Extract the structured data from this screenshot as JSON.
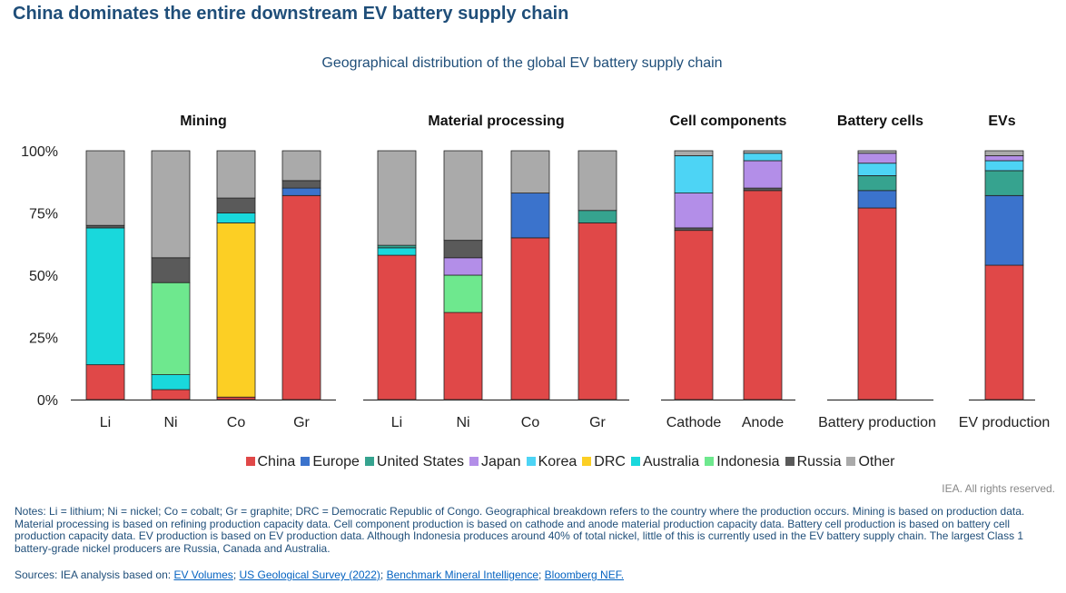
{
  "title": "China dominates the entire downstream EV battery supply chain",
  "subtitle": "Geographical distribution of the global EV battery supply chain",
  "legend": [
    {
      "name": "China",
      "color": "#e04848"
    },
    {
      "name": "Europe",
      "color": "#3b73cc"
    },
    {
      "name": "United States",
      "color": "#36a38f"
    },
    {
      "name": "Japan",
      "color": "#b38ee8"
    },
    {
      "name": "Korea",
      "color": "#4dd4f5"
    },
    {
      "name": "DRC",
      "color": "#fccf24"
    },
    {
      "name": "Australia",
      "color": "#19d8dc"
    },
    {
      "name": "Indonesia",
      "color": "#6ee88e"
    },
    {
      "name": "Russia",
      "color": "#5a5a5a"
    },
    {
      "name": "Other",
      "color": "#aaaaaa"
    }
  ],
  "rights": "IEA. All rights reserved.",
  "notes": "Notes: Li = lithium; Ni = nickel; Co = cobalt; Gr = graphite; DRC = Democratic Republic of Congo. Geographical breakdown refers to the country where the production occurs. Mining is based on production data. Material processing is based on refining production capacity data. Cell component production is based on cathode and anode material production capacity data. Battery cell production is based on battery cell production capacity data. EV production is based on EV production data. Although Indonesia produces around 40% of total nickel, little of this is currently used in the EV battery supply chain. The largest Class 1 battery-grade nickel producers are Russia, Canada and Australia.",
  "sources": {
    "prefix": "Sources: IEA analysis based on: ",
    "links": [
      "EV Volumes",
      "US Geological Survey (2022)",
      "Benchmark Mineral Intelligence",
      "Bloomberg NEF."
    ],
    "separators": [
      "; ",
      "; ",
      "; "
    ]
  },
  "chart_data": {
    "type": "bar",
    "stacked": true,
    "ylim": [
      0,
      100
    ],
    "yticks": [
      "0%",
      "25%",
      "50%",
      "75%",
      "100%"
    ],
    "panels": [
      {
        "title": "Mining",
        "bars": [
          {
            "label": "Li",
            "segments": [
              {
                "name": "China",
                "value": 14
              },
              {
                "name": "Australia",
                "value": 55
              },
              {
                "name": "Russia",
                "value": 1
              },
              {
                "name": "Other",
                "value": 30
              }
            ]
          },
          {
            "label": "Ni",
            "segments": [
              {
                "name": "China",
                "value": 4
              },
              {
                "name": "Australia",
                "value": 6
              },
              {
                "name": "Indonesia",
                "value": 37
              },
              {
                "name": "Russia",
                "value": 10
              },
              {
                "name": "Other",
                "value": 43
              }
            ]
          },
          {
            "label": "Co",
            "segments": [
              {
                "name": "China",
                "value": 1
              },
              {
                "name": "DRC",
                "value": 70
              },
              {
                "name": "Australia",
                "value": 4
              },
              {
                "name": "Russia",
                "value": 6
              },
              {
                "name": "Other",
                "value": 19
              }
            ]
          },
          {
            "label": "Gr",
            "segments": [
              {
                "name": "China",
                "value": 82
              },
              {
                "name": "Europe",
                "value": 3
              },
              {
                "name": "Russia",
                "value": 3
              },
              {
                "name": "Other",
                "value": 12
              }
            ]
          }
        ]
      },
      {
        "title": "Material processing",
        "bars": [
          {
            "label": "Li",
            "segments": [
              {
                "name": "China",
                "value": 58
              },
              {
                "name": "Australia",
                "value": 3
              },
              {
                "name": "United States",
                "value": 1
              },
              {
                "name": "Other",
                "value": 38
              }
            ]
          },
          {
            "label": "Ni",
            "segments": [
              {
                "name": "China",
                "value": 35
              },
              {
                "name": "Indonesia",
                "value": 15
              },
              {
                "name": "Japan",
                "value": 7
              },
              {
                "name": "Russia",
                "value": 7
              },
              {
                "name": "Other",
                "value": 36
              }
            ]
          },
          {
            "label": "Co",
            "segments": [
              {
                "name": "China",
                "value": 65
              },
              {
                "name": "Europe",
                "value": 18
              },
              {
                "name": "Other",
                "value": 17
              }
            ]
          },
          {
            "label": "Gr",
            "segments": [
              {
                "name": "China",
                "value": 71
              },
              {
                "name": "United States",
                "value": 5
              },
              {
                "name": "Other",
                "value": 24
              }
            ]
          }
        ]
      },
      {
        "title": "Cell components",
        "bars": [
          {
            "label": "Cathode",
            "segments": [
              {
                "name": "China",
                "value": 68
              },
              {
                "name": "Russia",
                "value": 1
              },
              {
                "name": "Japan",
                "value": 14
              },
              {
                "name": "Korea",
                "value": 15
              },
              {
                "name": "Other",
                "value": 2
              }
            ]
          },
          {
            "label": "Anode",
            "segments": [
              {
                "name": "China",
                "value": 84
              },
              {
                "name": "Russia",
                "value": 1
              },
              {
                "name": "Japan",
                "value": 11
              },
              {
                "name": "Korea",
                "value": 3
              },
              {
                "name": "Other",
                "value": 1
              }
            ]
          }
        ]
      },
      {
        "title": "Battery cells",
        "bars": [
          {
            "label": "Battery production",
            "segments": [
              {
                "name": "China",
                "value": 77
              },
              {
                "name": "Europe",
                "value": 7
              },
              {
                "name": "United States",
                "value": 6
              },
              {
                "name": "Korea",
                "value": 5
              },
              {
                "name": "Japan",
                "value": 4
              },
              {
                "name": "Other",
                "value": 1
              }
            ]
          }
        ]
      },
      {
        "title": "EVs",
        "bars": [
          {
            "label": "EV production",
            "segments": [
              {
                "name": "China",
                "value": 54
              },
              {
                "name": "Europe",
                "value": 28
              },
              {
                "name": "United States",
                "value": 10
              },
              {
                "name": "Korea",
                "value": 4
              },
              {
                "name": "Japan",
                "value": 2
              },
              {
                "name": "Other",
                "value": 2
              }
            ]
          }
        ]
      }
    ]
  }
}
